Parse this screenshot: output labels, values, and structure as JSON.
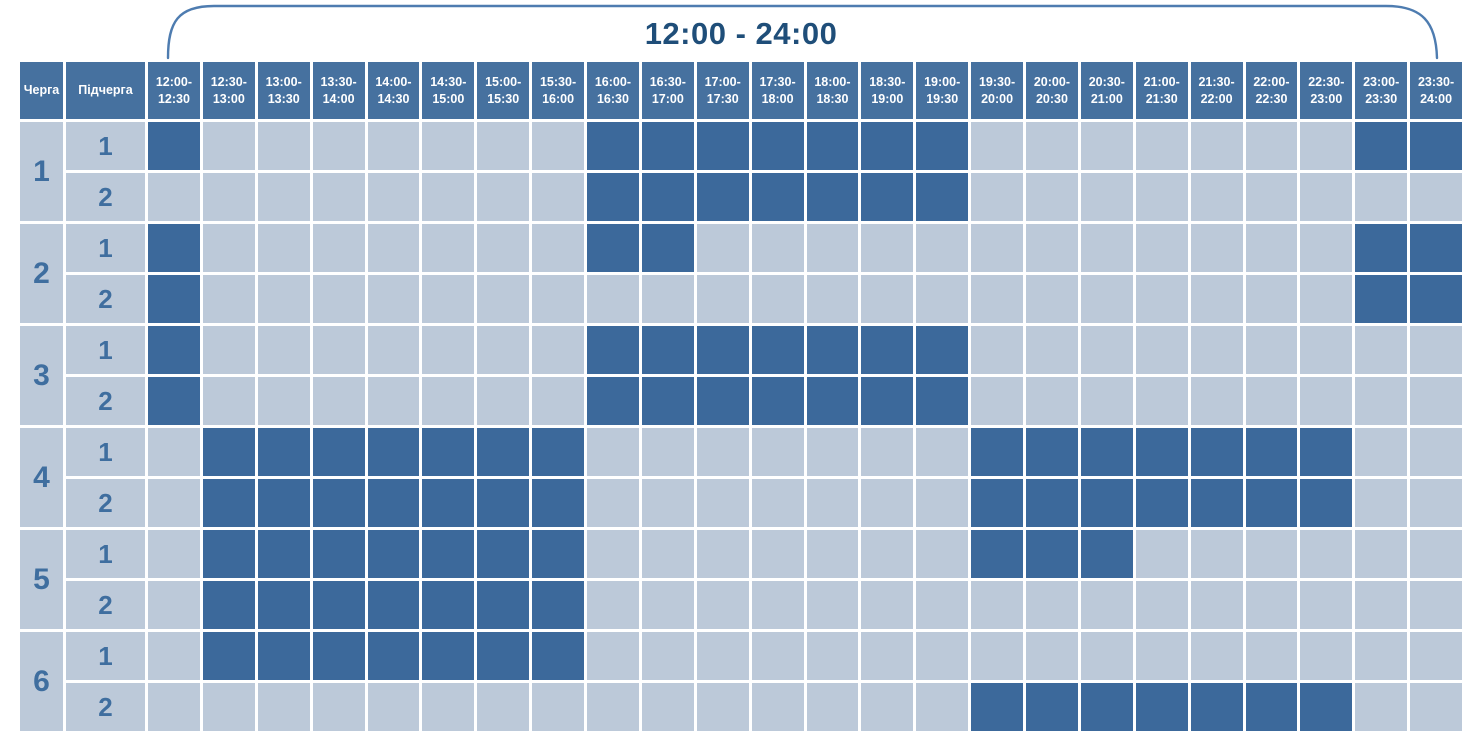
{
  "title": "12:00 - 24:00",
  "colors": {
    "page_bg": "#FFFFFF",
    "header_bg": "#46719F",
    "header_text": "#FFFFFF",
    "cell_on": "#3C699B",
    "cell_off": "#BCC9D9",
    "label_number": "#3F6E9F",
    "title_text": "#1F4E79",
    "brace_line": "#4E7CB0"
  },
  "table": {
    "queue_header": "Черга",
    "subqueue_header": "Підчерга"
  },
  "chart_data": {
    "type": "heatmap",
    "title": "12:00 - 24:00",
    "x_axis": "time slots (30-minute intervals)",
    "y_axis": "queue (Черга) / subqueue (Підчерга)",
    "cell_states": {
      "1": "filled dark blue",
      "0": "light blue empty"
    },
    "columns": [
      "12:00-12:30",
      "12:30-13:00",
      "13:00-13:30",
      "13:30-14:00",
      "14:00-14:30",
      "14:30-15:00",
      "15:00-15:30",
      "15:30-16:00",
      "16:00-16:30",
      "16:30-17:00",
      "17:00-17:30",
      "17:30-18:00",
      "18:00-18:30",
      "18:30-19:00",
      "19:00-19:30",
      "19:30-20:00",
      "20:00-20:30",
      "20:30-21:00",
      "21:00-21:30",
      "21:30-22:00",
      "22:00-22:30",
      "22:30-23:00",
      "23:00-23:30",
      "23:30-24:00"
    ],
    "rows": [
      {
        "queue": "1",
        "subqueue": "1",
        "values": [
          1,
          0,
          0,
          0,
          0,
          0,
          0,
          0,
          1,
          1,
          1,
          1,
          1,
          1,
          1,
          0,
          0,
          0,
          0,
          0,
          0,
          0,
          1,
          1
        ]
      },
      {
        "queue": "1",
        "subqueue": "2",
        "values": [
          0,
          0,
          0,
          0,
          0,
          0,
          0,
          0,
          1,
          1,
          1,
          1,
          1,
          1,
          1,
          0,
          0,
          0,
          0,
          0,
          0,
          0,
          0,
          0
        ]
      },
      {
        "queue": "2",
        "subqueue": "1",
        "values": [
          1,
          0,
          0,
          0,
          0,
          0,
          0,
          0,
          1,
          1,
          0,
          0,
          0,
          0,
          0,
          0,
          0,
          0,
          0,
          0,
          0,
          0,
          1,
          1
        ]
      },
      {
        "queue": "2",
        "subqueue": "2",
        "values": [
          1,
          0,
          0,
          0,
          0,
          0,
          0,
          0,
          0,
          0,
          0,
          0,
          0,
          0,
          0,
          0,
          0,
          0,
          0,
          0,
          0,
          0,
          1,
          1
        ]
      },
      {
        "queue": "3",
        "subqueue": "1",
        "values": [
          1,
          0,
          0,
          0,
          0,
          0,
          0,
          0,
          1,
          1,
          1,
          1,
          1,
          1,
          1,
          0,
          0,
          0,
          0,
          0,
          0,
          0,
          0,
          0
        ]
      },
      {
        "queue": "3",
        "subqueue": "2",
        "values": [
          1,
          0,
          0,
          0,
          0,
          0,
          0,
          0,
          1,
          1,
          1,
          1,
          1,
          1,
          1,
          0,
          0,
          0,
          0,
          0,
          0,
          0,
          0,
          0
        ]
      },
      {
        "queue": "4",
        "subqueue": "1",
        "values": [
          0,
          1,
          1,
          1,
          1,
          1,
          1,
          1,
          0,
          0,
          0,
          0,
          0,
          0,
          0,
          1,
          1,
          1,
          1,
          1,
          1,
          1,
          0,
          0
        ]
      },
      {
        "queue": "4",
        "subqueue": "2",
        "values": [
          0,
          1,
          1,
          1,
          1,
          1,
          1,
          1,
          0,
          0,
          0,
          0,
          0,
          0,
          0,
          1,
          1,
          1,
          1,
          1,
          1,
          1,
          0,
          0
        ]
      },
      {
        "queue": "5",
        "subqueue": "1",
        "values": [
          0,
          1,
          1,
          1,
          1,
          1,
          1,
          1,
          0,
          0,
          0,
          0,
          0,
          0,
          0,
          1,
          1,
          1,
          0,
          0,
          0,
          0,
          0,
          0
        ]
      },
      {
        "queue": "5",
        "subqueue": "2",
        "values": [
          0,
          1,
          1,
          1,
          1,
          1,
          1,
          1,
          0,
          0,
          0,
          0,
          0,
          0,
          0,
          0,
          0,
          0,
          0,
          0,
          0,
          0,
          0,
          0
        ]
      },
      {
        "queue": "6",
        "subqueue": "1",
        "values": [
          0,
          1,
          1,
          1,
          1,
          1,
          1,
          1,
          0,
          0,
          0,
          0,
          0,
          0,
          0,
          0,
          0,
          0,
          0,
          0,
          0,
          0,
          0,
          0
        ]
      },
      {
        "queue": "6",
        "subqueue": "2",
        "values": [
          0,
          0,
          0,
          0,
          0,
          0,
          0,
          0,
          0,
          0,
          0,
          0,
          0,
          0,
          0,
          1,
          1,
          1,
          1,
          1,
          1,
          1,
          0,
          0
        ]
      }
    ]
  }
}
